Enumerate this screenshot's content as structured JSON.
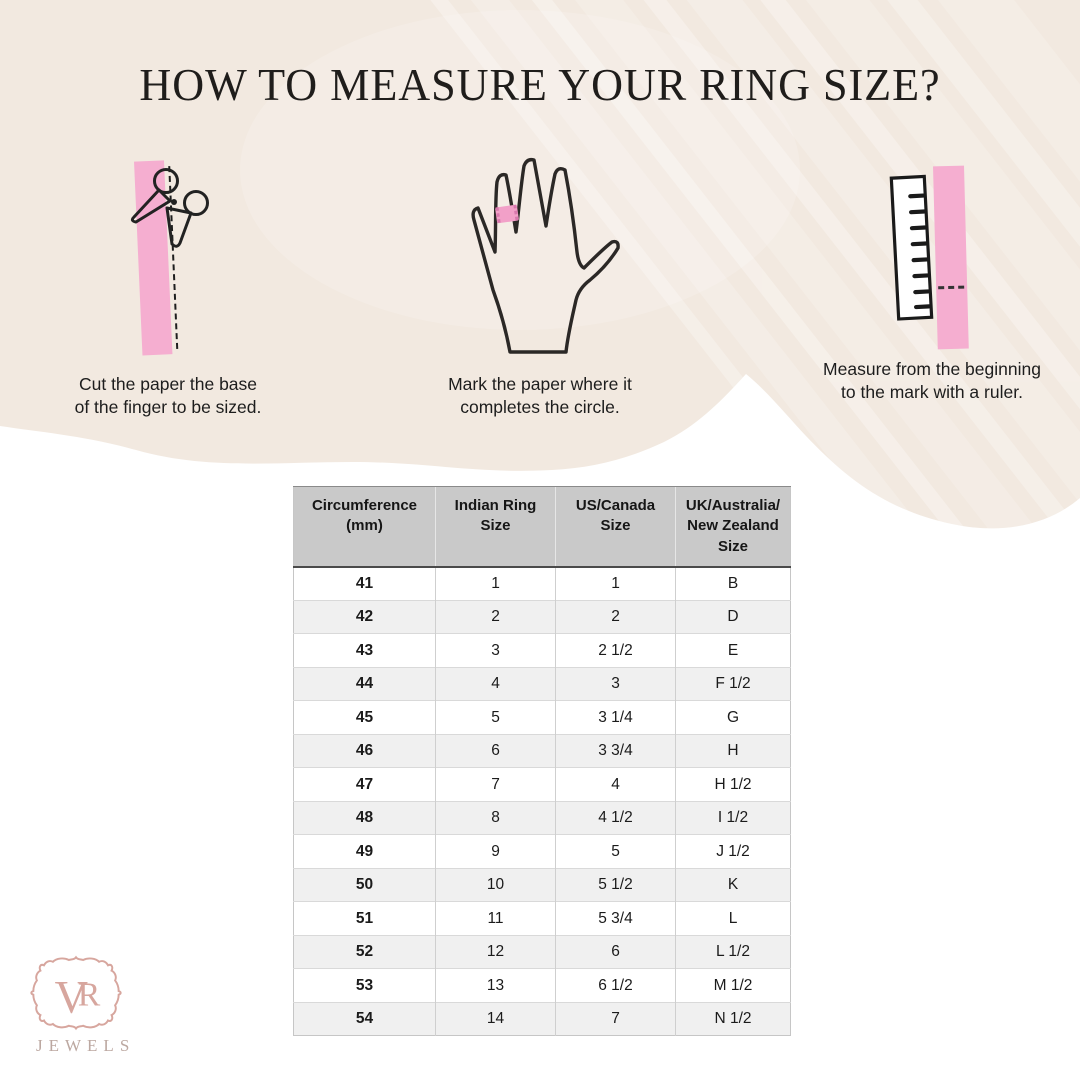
{
  "title": "HOW TO MEASURE YOUR RING SIZE?",
  "steps": [
    {
      "icon": "scissors-cutting-paper-strip",
      "caption": "Cut the paper the base\nof the finger to be sized."
    },
    {
      "icon": "hand-with-ring-mark",
      "caption": "Mark the paper where it\ncompletes the circle."
    },
    {
      "icon": "ruler-measuring-paper-strip",
      "caption": "Measure from the beginning\nto the mark with a ruler."
    }
  ],
  "table": {
    "headers": [
      "Circumference\n(mm)",
      "Indian Ring\nSize",
      "US/Canada\nSize",
      "UK/Australia/\nNew Zealand\nSize"
    ],
    "rows": [
      [
        "41",
        "1",
        "1",
        "B"
      ],
      [
        "42",
        "2",
        "2",
        "D"
      ],
      [
        "43",
        "3",
        "2 1/2",
        "E"
      ],
      [
        "44",
        "4",
        "3",
        "F 1/2"
      ],
      [
        "45",
        "5",
        "3 1/4",
        "G"
      ],
      [
        "46",
        "6",
        "3 3/4",
        "H"
      ],
      [
        "47",
        "7",
        "4",
        "H 1/2"
      ],
      [
        "48",
        "8",
        "4 1/2",
        "I 1/2"
      ],
      [
        "49",
        "9",
        "5",
        "J 1/2"
      ],
      [
        "50",
        "10",
        "5 1/2",
        "K"
      ],
      [
        "51",
        "11",
        "5 3/4",
        "L"
      ],
      [
        "52",
        "12",
        "6",
        "L 1/2"
      ],
      [
        "53",
        "13",
        "6 1/2",
        "M 1/2"
      ],
      [
        "54",
        "14",
        "7",
        "N 1/2"
      ]
    ]
  },
  "logo": {
    "monogram_v": "V",
    "monogram_r": "R",
    "name": "JEWELS"
  },
  "colors": {
    "background_cream": "#f2e9e0",
    "paper_pink": "#f5aed0",
    "ring_mark_pink": "#f2a0c8",
    "table_header_gray": "#c9c9c9",
    "table_row_alt": "#f0f0f0",
    "logo_rose": "#d7a69e",
    "text_dark": "#1f1d1b"
  }
}
